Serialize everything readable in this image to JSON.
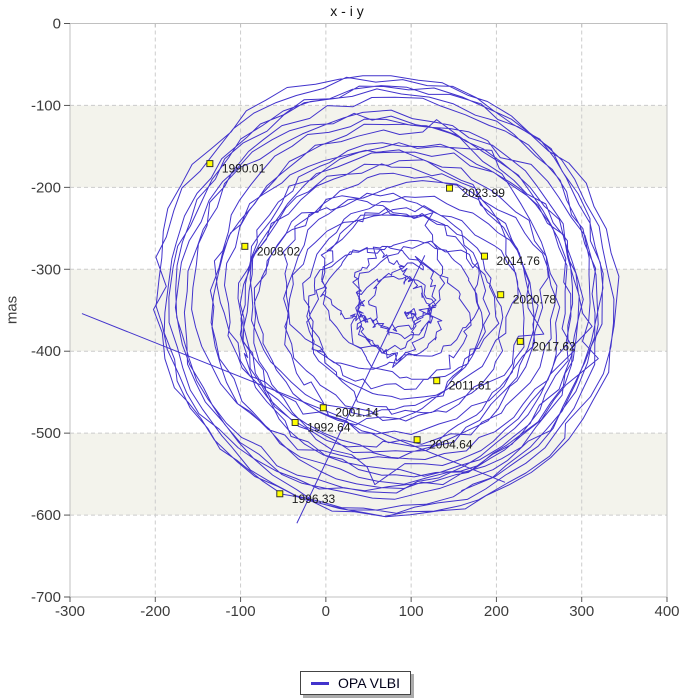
{
  "page": {
    "background": "#ffffff"
  },
  "chart": {
    "title": "x - i y",
    "y_axis_label": "mas",
    "legend_label": "OPA VLBI",
    "colors": {
      "line": "#4233cc",
      "band": "#f3f3ec",
      "grid": "#cccccc",
      "border": "#c0c0c0",
      "tick": "#555555",
      "tick_label": "#3c3c3c",
      "marker_fill": "#ffff00",
      "marker_stroke": "#333333",
      "epoch_label": "#1a1a1a"
    }
  },
  "chart_data": {
    "type": "line",
    "title": "x - i y",
    "xlabel": "",
    "ylabel": "mas",
    "xlim": [
      -300,
      400
    ],
    "ylim": [
      -700,
      0
    ],
    "x_ticks": [
      -300,
      -200,
      -100,
      0,
      100,
      200,
      300,
      400
    ],
    "y_ticks": [
      0,
      -100,
      -200,
      -300,
      -400,
      -500,
      -600,
      -700
    ],
    "shaded_y_bands": [
      [
        -100,
        -200
      ],
      [
        -300,
        -400
      ],
      [
        -500,
        -600
      ]
    ],
    "grid": "dashed",
    "legend": [
      "OPA VLBI"
    ],
    "legend_position": "bottom-center",
    "series": [
      {
        "name": "OPA VLBI",
        "description": "Earth polar motion path x - i y (milliarcseconds): ~32 overlapping Chandler + annual wobble loops from 1990.0 to 2025.3, spiraling around a slowly drifting mean pole, with two straight outlier segments.",
        "epoch_markers": [
          {
            "label": "1990.01",
            "x": -136,
            "y": -171
          },
          {
            "label": "1992.64",
            "x": -36,
            "y": -487
          },
          {
            "label": "1996.33",
            "x": -54,
            "y": -574
          },
          {
            "label": "2001.14",
            "x": -3,
            "y": -469
          },
          {
            "label": "2004.64",
            "x": 107,
            "y": -508
          },
          {
            "label": "2008.02",
            "x": -95,
            "y": -272
          },
          {
            "label": "2011.61",
            "x": 130,
            "y": -436
          },
          {
            "label": "2014.76",
            "x": 186,
            "y": -284
          },
          {
            "label": "2017.62",
            "x": 228,
            "y": -388
          },
          {
            "label": "2020.78",
            "x": 205,
            "y": -331
          },
          {
            "label": "2023.99",
            "x": 145,
            "y": -201
          }
        ],
        "outlier_segments": [
          [
            [
              -286,
              -354
            ],
            [
              210,
              -560
            ]
          ],
          [
            [
              116,
              -283
            ],
            [
              -34,
              -610
            ]
          ]
        ],
        "path_model": {
          "t_start": 1990.0,
          "t_end": 2025.3,
          "dt": 0.02,
          "center": {
            "x0": 55,
            "y0": -325,
            "x_rate": 1.3,
            "y_rate": -0.9
          },
          "chandler": {
            "amplitude": 150,
            "amplitude_late_drop": 65,
            "drop_start": 2010,
            "drop_span": 8,
            "period": 1.185,
            "phase_epoch": 1990.2
          },
          "annual": {
            "amplitude": 115,
            "period": 1.0,
            "phase_epoch": 1990.2
          },
          "jitter_mas": 5
        }
      }
    ]
  }
}
